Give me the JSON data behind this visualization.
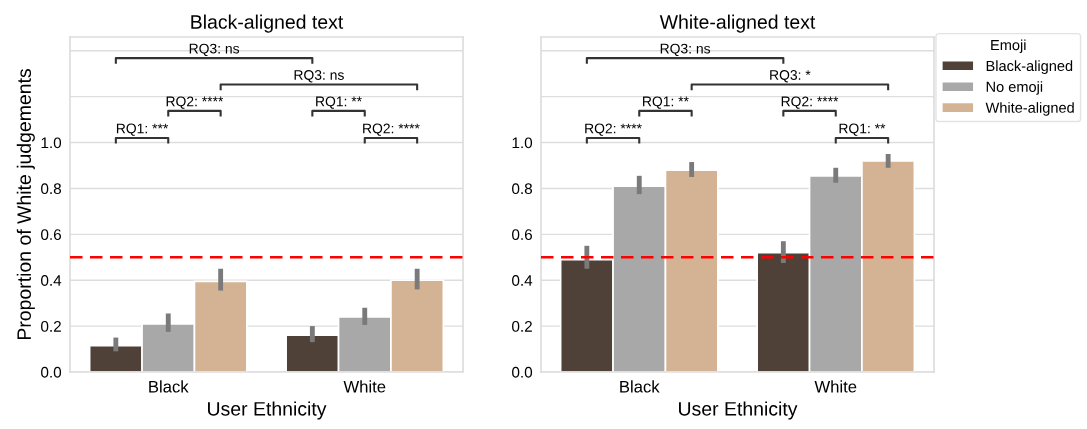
{
  "chart_data": [
    {
      "type": "bar",
      "title": "Black-aligned text",
      "xlabel": "User Ethnicity",
      "ylabel": "Proportion of White judgements",
      "categories": [
        "Black",
        "White"
      ],
      "series": [
        {
          "color": "#4f4038",
          "values": [
            0.115,
            0.16
          ],
          "errors": [
            [
              0.09,
              0.15
            ],
            [
              0.13,
              0.2
            ]
          ]
        },
        {
          "color": "#a8a8a8",
          "values": [
            0.21,
            0.24
          ],
          "errors": [
            [
              0.175,
              0.255
            ],
            [
              0.205,
              0.28
            ]
          ]
        },
        {
          "color": "#d4b394",
          "values": [
            0.395,
            0.4
          ],
          "errors": [
            [
              0.355,
              0.45
            ],
            [
              0.36,
              0.45
            ]
          ]
        }
      ],
      "ylim": [
        0,
        1.46
      ],
      "yticks": [
        {
          "value": 0,
          "label": "0.0"
        },
        {
          "value": 0.2,
          "label": "0.2"
        },
        {
          "value": 0.4,
          "label": "0.4"
        },
        {
          "value": 0.6,
          "label": "0.6"
        },
        {
          "value": 0.8,
          "label": "0.8"
        },
        {
          "value": 1.0,
          "label": "1.0"
        },
        {
          "value": 1.2,
          "label": null
        },
        {
          "value": 1.4,
          "label": null
        }
      ],
      "ref_lines": [
        {
          "axis": "y",
          "value": 0.5,
          "color": "#ff0000",
          "line_style": "dashed"
        }
      ],
      "annotations": [
        "RQ1: ***",
        "RQ2: ****",
        "RQ2: ****",
        "RQ1: **",
        "RQ3: ns",
        "RQ3: ns"
      ],
      "grid": "y",
      "legend": false
    },
    {
      "type": "bar",
      "title": "White-aligned text",
      "xlabel": "User Ethnicity",
      "legend_title": "Emoji",
      "categories": [
        "Black",
        "White"
      ],
      "series": [
        {
          "name": "Black-aligned",
          "color": "#4f4038",
          "values": [
            0.49,
            0.52
          ],
          "errors": [
            [
              0.45,
              0.55
            ],
            [
              0.475,
              0.57
            ]
          ]
        },
        {
          "name": "No emoji",
          "color": "#a8a8a8",
          "values": [
            0.81,
            0.855
          ],
          "errors": [
            [
              0.775,
              0.855
            ],
            [
              0.825,
              0.89
            ]
          ]
        },
        {
          "name": "White-aligned",
          "color": "#d4b394",
          "values": [
            0.88,
            0.92
          ],
          "errors": [
            [
              0.85,
              0.915
            ],
            [
              0.89,
              0.95
            ]
          ]
        }
      ],
      "ylim": [
        0,
        1.46
      ],
      "yticks": [
        {
          "value": 0,
          "label": "0.0"
        },
        {
          "value": 0.2,
          "label": "0.2"
        },
        {
          "value": 0.4,
          "label": "0.4"
        },
        {
          "value": 0.6,
          "label": "0.6"
        },
        {
          "value": 0.8,
          "label": "0.8"
        },
        {
          "value": 1.0,
          "label": "1.0"
        },
        {
          "value": 1.2,
          "label": null
        },
        {
          "value": 1.4,
          "label": null
        }
      ],
      "ref_lines": [
        {
          "axis": "y",
          "value": 0.5,
          "color": "#ff0000",
          "line_style": "dashed"
        }
      ],
      "annotations": [
        "RQ2: ****",
        "RQ1: **",
        "RQ1: **",
        "RQ2: ****",
        "RQ3: *",
        "RQ3: ns"
      ],
      "grid": "y",
      "legend": "right"
    }
  ]
}
